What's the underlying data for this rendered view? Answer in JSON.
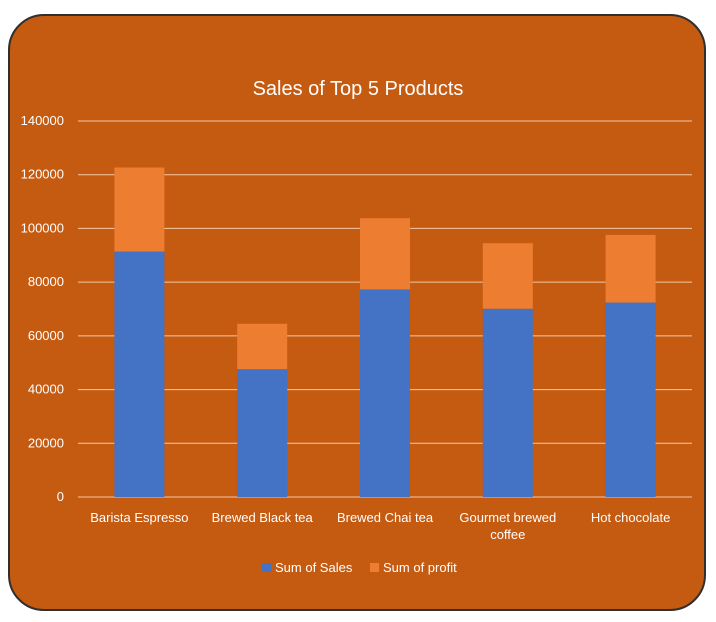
{
  "chart_data": {
    "type": "bar",
    "stacked": true,
    "title": "Sales of Top 5 Products",
    "categories": [
      "Barista Espresso",
      "Brewed Black tea",
      "Brewed Chai tea",
      "Gourmet brewed coffee",
      "Hot chocolate"
    ],
    "category_lines": [
      [
        "Barista Espresso"
      ],
      [
        "Brewed Black tea"
      ],
      [
        "Brewed Chai tea"
      ],
      [
        "Gourmet brewed",
        "coffee"
      ],
      [
        "Hot chocolate"
      ]
    ],
    "series": [
      {
        "name": "Sum of Sales",
        "color": "#4472c4",
        "values": [
          91400,
          47600,
          77300,
          70100,
          72400
        ]
      },
      {
        "name": "Sum of profit",
        "color": "#ed7d31",
        "values": [
          31300,
          16900,
          26500,
          24400,
          25200
        ]
      }
    ],
    "y_ticks": [
      "0",
      "20000",
      "40000",
      "60000",
      "80000",
      "100000",
      "120000",
      "140000"
    ],
    "ylim": [
      0,
      140000
    ],
    "grid": true,
    "legend_position": "bottom",
    "background_color": "#c55a11"
  }
}
